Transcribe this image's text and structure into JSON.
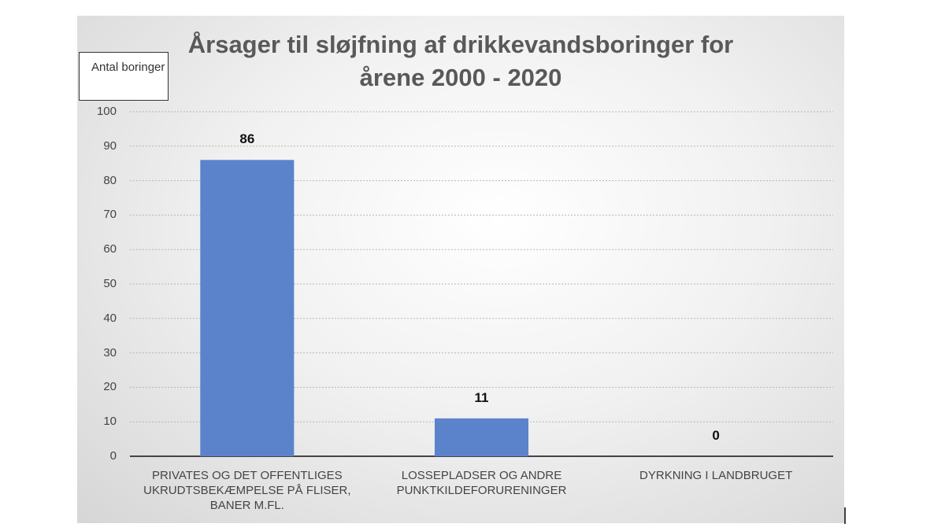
{
  "chart_data": {
    "type": "bar",
    "title": "Årsager til sløjfning af drikkevandsboringer for årene 2000 - 2020",
    "y_label": "Antal boringer",
    "categories": [
      "PRIVATES OG DET OFFENTLIGES UKRUDTSBEKÆMPELSE PÅ FLISER, BANER M.FL.",
      "LOSSEPLADSER OG ANDRE PUNKTKILDEFORURENINGER",
      "DYRKNING I LANDBRUGET"
    ],
    "values": [
      86,
      11,
      0
    ],
    "color": "#5b83cc",
    "ylim": [
      0,
      100
    ],
    "yticks": [
      0,
      10,
      20,
      30,
      40,
      50,
      60,
      70,
      80,
      90,
      100
    ],
    "grid": true
  }
}
